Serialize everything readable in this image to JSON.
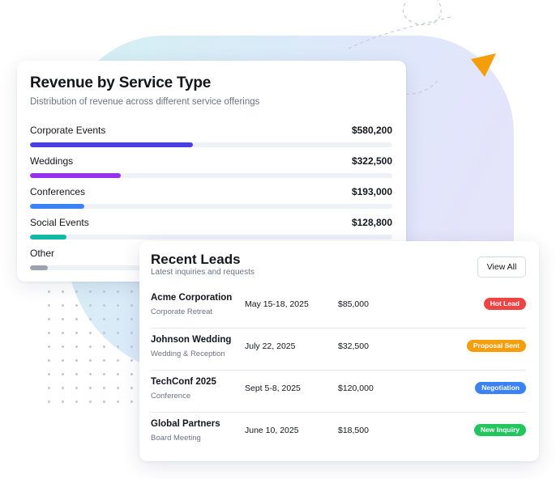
{
  "colors": {
    "corporate_bar": "#4a3fe0",
    "weddings_bar": "#9333ea",
    "conferences_bar": "#3b82f6",
    "social_bar": "#14b8a6",
    "other_bar": "#9ca3af",
    "hot_lead": "#ef4444",
    "proposal_sent": "#f59e0b",
    "negotiation": "#3b82f6",
    "new_inquiry": "#22c55e",
    "accent_triangle": "#f59e0b"
  },
  "revenue": {
    "title": "Revenue by Service Type",
    "subtitle": "Distribution of revenue across different service offerings",
    "items": [
      {
        "label": "Corporate Events",
        "amount": "$580,200",
        "share": 0.45,
        "color": "#4a3fe0"
      },
      {
        "label": "Weddings",
        "amount": "$322,500",
        "share": 0.25,
        "color": "#9333ea"
      },
      {
        "label": "Conferences",
        "amount": "$193,000",
        "share": 0.15,
        "color": "#3b82f6"
      },
      {
        "label": "Social Events",
        "amount": "$128,800",
        "share": 0.1,
        "color": "#14b8a6"
      },
      {
        "label": "Other",
        "amount": "",
        "share": 0.05,
        "color": "#9ca3af"
      }
    ]
  },
  "leads": {
    "title": "Recent Leads",
    "subtitle": "Latest inquiries and requests",
    "view_all_label": "View All",
    "rows": [
      {
        "name": "Acme Corporation",
        "type": "Corporate Retreat",
        "date": "May 15-18, 2025",
        "amount": "$85,000",
        "status": "Hot Lead",
        "status_color": "#ef4444"
      },
      {
        "name": "Johnson Wedding",
        "type": "Wedding & Reception",
        "date": "July 22, 2025",
        "amount": "$32,500",
        "status": "Proposal Sent",
        "status_color": "#f59e0b"
      },
      {
        "name": "TechConf 2025",
        "type": "Conference",
        "date": "Sept 5-8, 2025",
        "amount": "$120,000",
        "status": "Negotiation",
        "status_color": "#3b82f6"
      },
      {
        "name": "Global Partners",
        "type": "Board Meeting",
        "date": "June 10, 2025",
        "amount": "$18,500",
        "status": "New Inquiry",
        "status_color": "#22c55e"
      }
    ]
  },
  "decorations": {
    "triangle_icon": "play-triangle-icon",
    "dots_icon": "dot-grid-pattern",
    "dashed_icon": "dashed-curve-lines"
  }
}
